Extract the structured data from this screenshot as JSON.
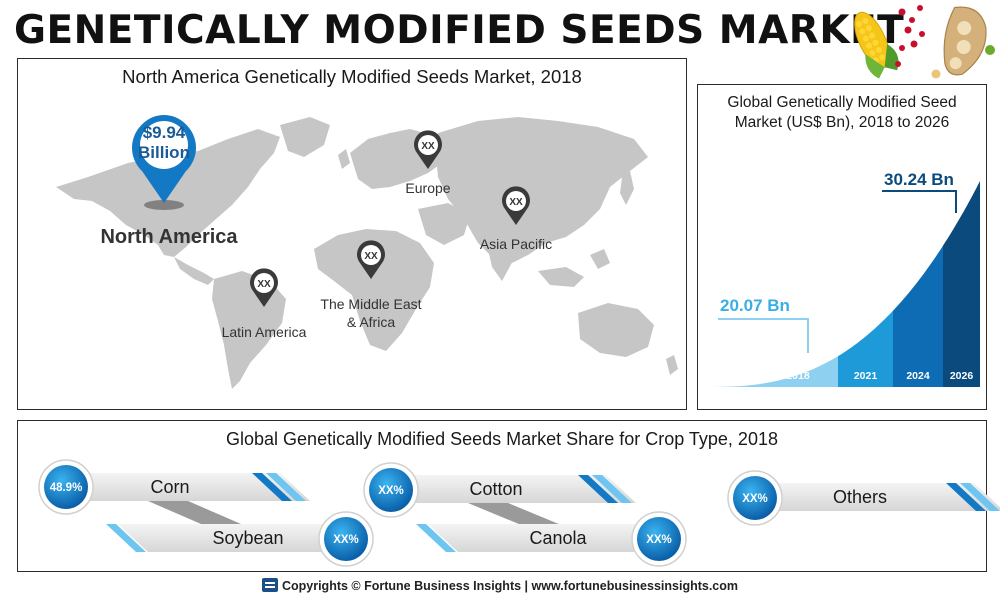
{
  "title": "GENETICALLY MODIFIED SEEDS MARKET",
  "map_panel": {
    "title": "North America Genetically Modified Seeds Market, 2018",
    "highlight": {
      "region": "North America",
      "value_line1": "$9.94",
      "value_line2": "Billion"
    },
    "regions": [
      {
        "name_line1": "Europe",
        "name_line2": "",
        "value": "XX"
      },
      {
        "name_line1": "Asia Pacific",
        "name_line2": "",
        "value": "XX"
      },
      {
        "name_line1": "The Middle East",
        "name_line2": "& Africa",
        "value": "XX"
      },
      {
        "name_line1": "Latin America",
        "name_line2": "",
        "value": "XX"
      }
    ]
  },
  "chart_data": [
    {
      "type": "area",
      "title": "Global Genetically Modified Seed Market (US$ Bn), 2018 to 2026",
      "categories": [
        "2018",
        "2021",
        "2024",
        "2026"
      ],
      "annotations": [
        {
          "label": "20.07 Bn",
          "x": "2018",
          "value": 20.07
        },
        {
          "label": "30.24 Bn",
          "x": "2026",
          "value": 30.24
        }
      ],
      "colors": [
        "#8ed0ef",
        "#1f9ad8",
        "#0d6cb3",
        "#0b4a7d"
      ]
    },
    {
      "type": "table",
      "title": "Global Genetically Modified Seeds Market Share for Crop Type, 2018",
      "items": [
        {
          "label": "Corn",
          "value": "48.9%"
        },
        {
          "label": "Soybean",
          "value": "XX%"
        },
        {
          "label": "Cotton",
          "value": "XX%"
        },
        {
          "label": "Canola",
          "value": "XX%"
        },
        {
          "label": "Others",
          "value": "XX%"
        }
      ]
    }
  ],
  "footer": {
    "text": "Copyrights © Fortune Business Insights | www.fortunebusinessinsights.com"
  },
  "colors": {
    "accent": "#1479c4",
    "map_land": "#c6c6c6",
    "pin": "#3a3a3a"
  }
}
